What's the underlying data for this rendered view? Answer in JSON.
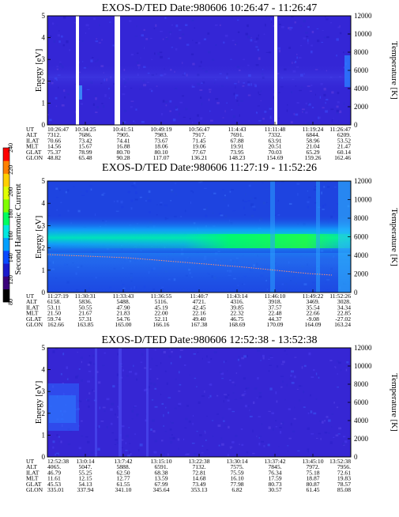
{
  "colorbar": {
    "label": "Second Harmonic Current",
    "ticks": [
      "80",
      "120",
      "140",
      "160",
      "180",
      "200",
      "220",
      "240"
    ],
    "colors": [
      "#000000",
      "#3a007a",
      "#1a1acc",
      "#0a4aff",
      "#00a0ff",
      "#00e8e0",
      "#00ff60",
      "#80ff00",
      "#e0ff00",
      "#ffd000",
      "#ff8000",
      "#ff0000"
    ]
  },
  "ephemeris_labels": [
    "UT",
    "ALT",
    "ILAT",
    "MLT",
    "GLAT",
    "GLON"
  ],
  "chart_data": [
    {
      "type": "heatmap",
      "title": "EXOS-D/TED   Date:980606  10:26:47 - 11:26:47",
      "ylabel": "Energy [eV]",
      "y2label": "Temperature [K]",
      "ylim": [
        0,
        5
      ],
      "y2lim": [
        0,
        12000
      ],
      "yticks": [
        "0",
        "1",
        "2",
        "3",
        "4",
        "5"
      ],
      "y2ticks": [
        "0",
        "2000",
        "4000",
        "6000",
        "8000",
        "10000",
        "12000"
      ],
      "background": "#3426d6",
      "data_gaps": [
        [
          0.125,
          0.155
        ],
        [
          0.29,
          0.315
        ],
        [
          0.805,
          0.815
        ]
      ],
      "ephemeris": [
        [
          "10:26:47",
          "7312.",
          "70.66",
          "14.56",
          "75.37",
          "48.82"
        ],
        [
          "10:34:25",
          "7686.",
          "73.42",
          "15.67",
          "78.99",
          "65.48"
        ],
        [
          "10:41:51",
          "7905.",
          "74.41",
          "16.88",
          "80.70",
          "90.28"
        ],
        [
          "10:49:19",
          "7983.",
          "73.67",
          "18.06",
          "80.10",
          "117.07"
        ],
        [
          "10:56:47",
          "7917.",
          "71.45",
          "19.06",
          "77.67",
          "136.21"
        ],
        [
          "11:4:43",
          "7691.",
          "67.88",
          "19.91",
          "73.95",
          "148.23"
        ],
        [
          "11:11:48",
          "7332.",
          "63.91",
          "20.51",
          "70.03",
          "154.69"
        ],
        [
          "11:19:24",
          "6844.",
          "58.96",
          "21.04",
          "65.29",
          "159.26"
        ],
        [
          "11:26:47",
          "6209.",
          "53.52",
          "21.47",
          "60.14",
          "162.46"
        ]
      ]
    },
    {
      "type": "heatmap",
      "title": "EXOS-D/TED   Date:980606  11:27:19 - 11:52:26",
      "ylabel": "Energy [eV]",
      "y2label": "Temperature [K]",
      "ylim": [
        0,
        5
      ],
      "y2lim": [
        0,
        12000
      ],
      "yticks": [
        "0",
        "1",
        "2",
        "3",
        "4",
        "5"
      ],
      "y2ticks": [
        "0",
        "2000",
        "4000",
        "6000",
        "8000",
        "10000",
        "12000"
      ],
      "background": "#1e44e0",
      "ephemeris": [
        [
          "11:27:19",
          "6158.",
          "53.11",
          "21.50",
          "59.74",
          "162.66"
        ],
        [
          "11:30:31",
          "5836.",
          "50.55",
          "21.67",
          "57.31",
          "163.85"
        ],
        [
          "11:33:43",
          "5488.",
          "47.90",
          "21.83",
          "54.76",
          "165.00"
        ],
        [
          "11:36:55",
          "5116.",
          "45.19",
          "22.00",
          "52.11",
          "166.16"
        ],
        [
          "11:40:7",
          "4721.",
          "42.45",
          "22.16",
          "49.40",
          "167.38"
        ],
        [
          "11:43:14",
          "4316.",
          "39.85",
          "22.32",
          "46.75",
          "168.69"
        ],
        [
          "11:46:10",
          "3918.",
          "37.57",
          "22.48",
          "44.37",
          "170.09"
        ],
        [
          "11:49:22",
          "3469.",
          "35.54",
          "22.66",
          "-9.08",
          "164.09"
        ],
        [
          "11:52:26",
          "3028.",
          "34.34",
          "22.85",
          "-27.02",
          "163.24"
        ]
      ]
    },
    {
      "type": "heatmap",
      "title": "EXOS-D/TED   Date:980606  12:52:38 - 13:52:38",
      "ylabel": "Energy [eV]",
      "y2label": "Temperature [K]",
      "ylim": [
        0,
        5
      ],
      "y2lim": [
        0,
        12000
      ],
      "yticks": [
        "0",
        "1",
        "2",
        "3",
        "4",
        "5"
      ],
      "y2ticks": [
        "0",
        "2000",
        "4000",
        "6000",
        "8000",
        "10000",
        "12000"
      ],
      "background": "#3626d4",
      "ephemeris": [
        [
          "12:52:38",
          "4065.",
          "46.79",
          "11.61",
          "45.53",
          "335.01"
        ],
        [
          "13:0:14",
          "5047.",
          "55.25",
          "12.15",
          "54.13",
          "337.94"
        ],
        [
          "13:7:42",
          "5888.",
          "62.50",
          "12.77",
          "61.55",
          "341.10"
        ],
        [
          "13:15:10",
          "6591.",
          "68.38",
          "13.59",
          "67.99",
          "345.64"
        ],
        [
          "13:22:38",
          "7132.",
          "72.81",
          "14.68",
          "73.49",
          "353.13"
        ],
        [
          "13:30:14",
          "7575.",
          "75.59",
          "16.10",
          "77.98",
          "6.82"
        ],
        [
          "13:37:42",
          "7845.",
          "76.34",
          "17.59",
          "80.73",
          "30.57"
        ],
        [
          "13:45:10",
          "7972.",
          "75.18",
          "18.87",
          "80.87",
          "61.45"
        ],
        [
          "13:52:38",
          "7956.",
          "72.61",
          "19.83",
          "78.57",
          "85.08"
        ]
      ]
    }
  ]
}
